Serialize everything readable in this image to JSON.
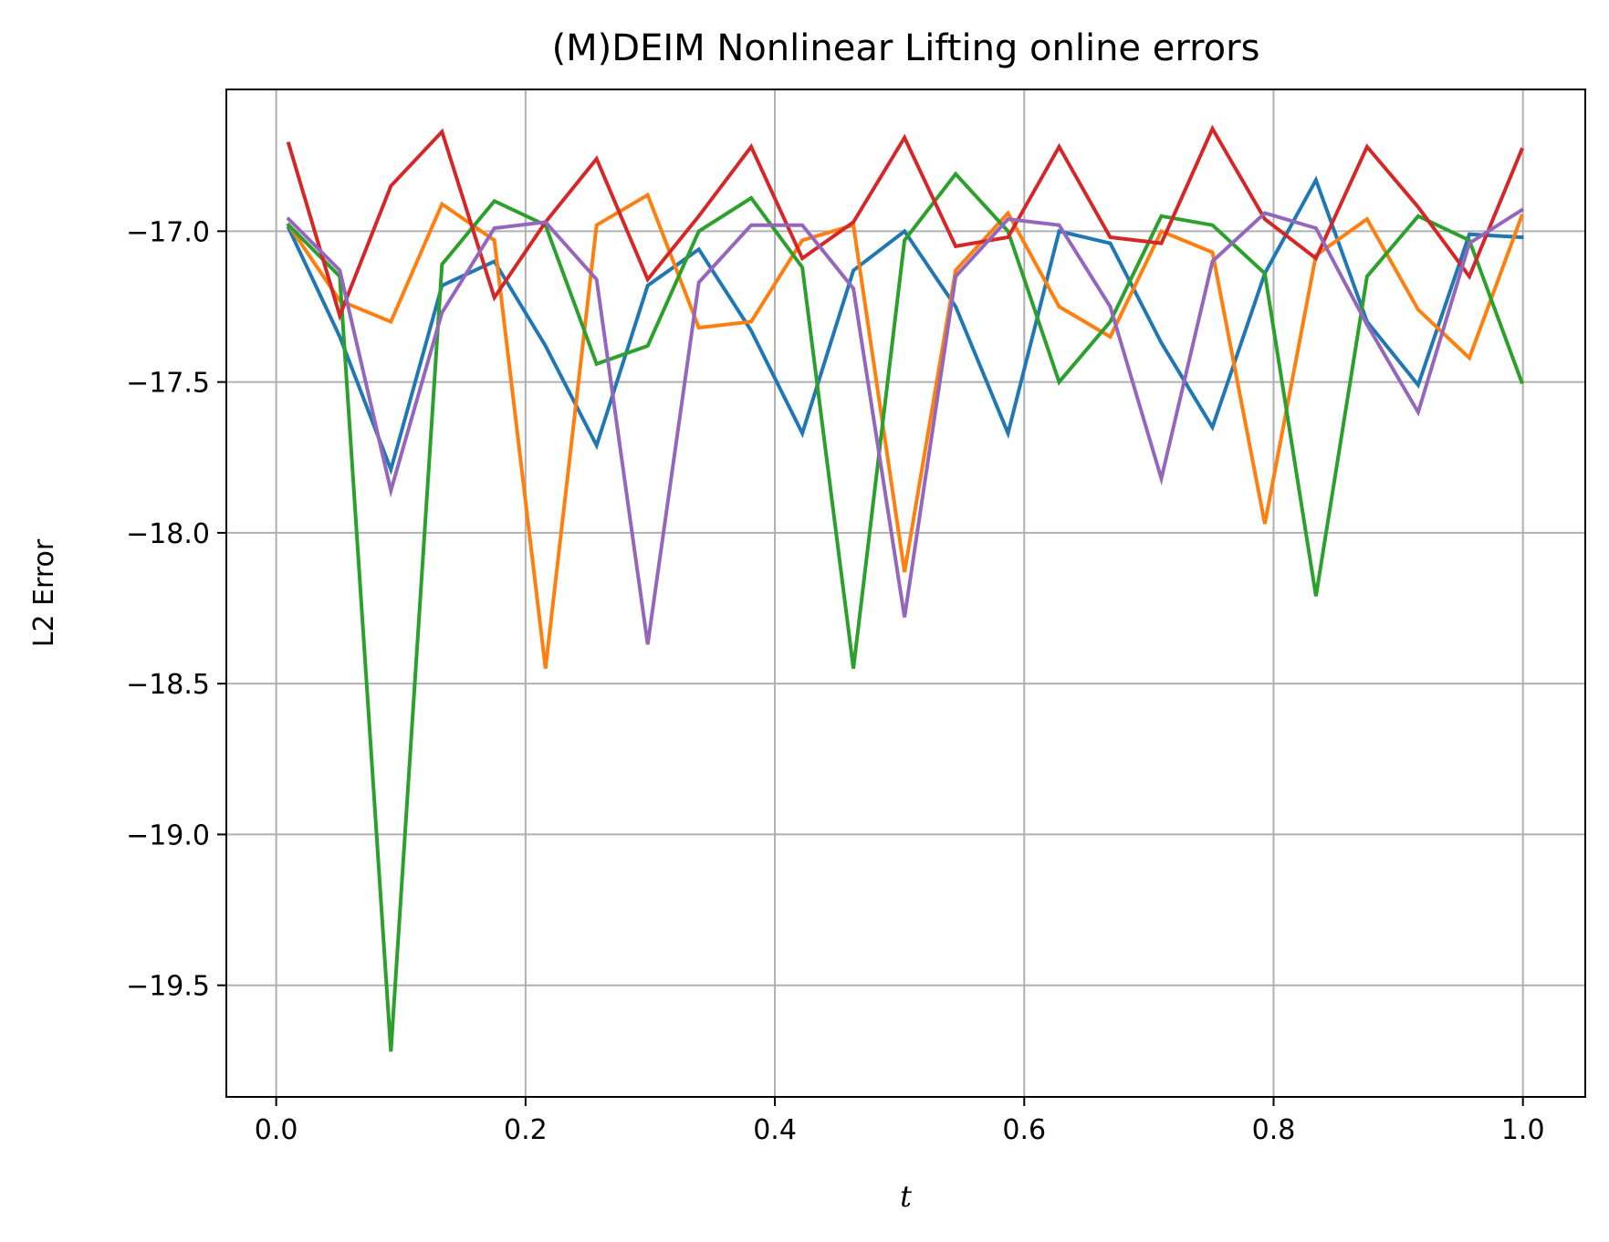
{
  "chart_data": {
    "type": "line",
    "title": "(M)DEIM Nonlinear Lifting online errors",
    "xlabel": "t",
    "ylabel": "L2 Error",
    "xlim": [
      -0.04,
      1.05
    ],
    "ylim": [
      -19.87,
      -16.53
    ],
    "xticks": [
      0.0,
      0.2,
      0.4,
      0.6,
      0.8,
      1.0
    ],
    "xtick_labels": [
      "0.0",
      "0.2",
      "0.4",
      "0.6",
      "0.8",
      "1.0"
    ],
    "yticks": [
      -17.0,
      -17.5,
      -18.0,
      -18.5,
      -19.0,
      -19.5
    ],
    "ytick_labels": [
      "−17.0",
      "−17.5",
      "−18.0",
      "−18.5",
      "−19.0",
      "−19.5"
    ],
    "grid": true,
    "x": [
      0.01,
      0.051,
      0.092,
      0.133,
      0.175,
      0.216,
      0.257,
      0.298,
      0.339,
      0.381,
      0.422,
      0.463,
      0.504,
      0.545,
      0.587,
      0.628,
      0.669,
      0.71,
      0.751,
      0.793,
      0.834,
      0.875,
      0.916,
      0.957,
      0.999
    ],
    "series": [
      {
        "color": "#1f77b4",
        "values": [
          -16.99,
          -17.35,
          -17.79,
          -17.18,
          -17.1,
          -17.38,
          -17.71,
          -17.18,
          -17.06,
          -17.33,
          -17.67,
          -17.13,
          -17.0,
          -17.25,
          -17.67,
          -17.0,
          -17.04,
          -17.37,
          -17.65,
          -17.14,
          -16.83,
          -17.3,
          -17.51,
          -17.01,
          -17.02
        ]
      },
      {
        "color": "#ff7f0e",
        "values": [
          -16.98,
          -17.23,
          -17.3,
          -16.91,
          -17.03,
          -18.45,
          -16.98,
          -16.88,
          -17.32,
          -17.3,
          -17.03,
          -16.98,
          -18.13,
          -17.13,
          -16.94,
          -17.25,
          -17.35,
          -17.0,
          -17.07,
          -17.97,
          -17.08,
          -16.96,
          -17.26,
          -17.42,
          -16.95
        ]
      },
      {
        "color": "#2ca02c",
        "values": [
          -16.98,
          -17.15,
          -19.72,
          -17.11,
          -16.9,
          -16.98,
          -17.44,
          -17.38,
          -17.0,
          -16.89,
          -17.12,
          -18.45,
          -17.03,
          -16.81,
          -17.0,
          -17.5,
          -17.3,
          -16.95,
          -16.98,
          -17.14,
          -18.21,
          -17.15,
          -16.95,
          -17.03,
          -17.5
        ]
      },
      {
        "color": "#d62728",
        "values": [
          -16.71,
          -17.28,
          -16.85,
          -16.67,
          -17.22,
          -16.97,
          -16.76,
          -17.16,
          -16.95,
          -16.72,
          -17.09,
          -16.97,
          -16.69,
          -17.05,
          -17.02,
          -16.72,
          -17.02,
          -17.04,
          -16.66,
          -16.96,
          -17.09,
          -16.72,
          -16.92,
          -17.15,
          -16.73
        ]
      },
      {
        "color": "#9467bd",
        "values": [
          -16.96,
          -17.13,
          -17.86,
          -17.27,
          -16.99,
          -16.97,
          -17.16,
          -18.37,
          -17.17,
          -16.98,
          -16.98,
          -17.19,
          -18.28,
          -17.15,
          -16.96,
          -16.98,
          -17.25,
          -17.82,
          -17.1,
          -16.94,
          -16.99,
          -17.31,
          -17.6,
          -17.04,
          -16.93
        ]
      }
    ]
  }
}
